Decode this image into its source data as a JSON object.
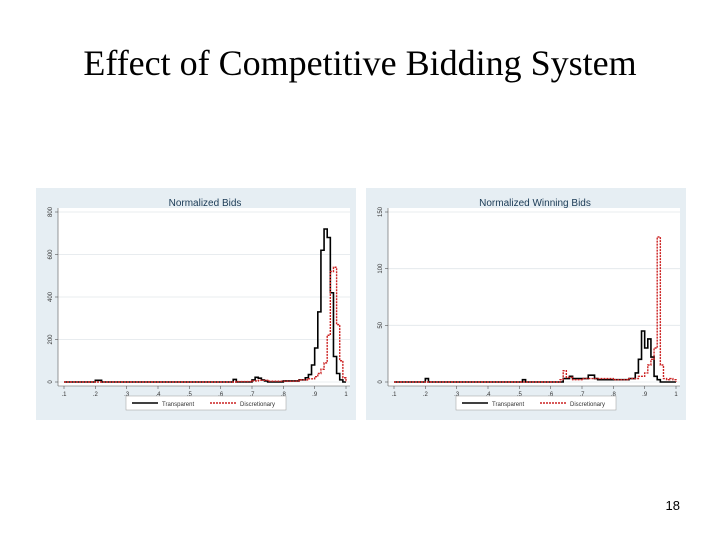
{
  "slide": {
    "title": "Effect of Competitive Bidding System",
    "page_number": "18"
  },
  "colors": {
    "panel_bg": "#e6eef3",
    "plot_bg": "#ffffff",
    "transparent_line": "#000000",
    "discretionary_line": "#cc2222"
  },
  "chart_data": [
    {
      "type": "line",
      "title": "Normalized Bids",
      "xlabel": "",
      "ylabel": "",
      "xlim": [
        0.1,
        1
      ],
      "ylim": [
        0,
        800
      ],
      "x_ticks": [
        ".1",
        ".2",
        ".3",
        ".4",
        ".5",
        ".6",
        ".7",
        ".8",
        ".9",
        "1"
      ],
      "y_ticks": [
        "0",
        "200",
        "400",
        "600",
        "800"
      ],
      "grid": true,
      "legend_position": "bottom",
      "series": [
        {
          "name": "Transparent",
          "color": "#000000",
          "style": "solid",
          "x": [
            0.1,
            0.19,
            0.2,
            0.21,
            0.22,
            0.3,
            0.4,
            0.5,
            0.6,
            0.63,
            0.64,
            0.65,
            0.7,
            0.71,
            0.72,
            0.73,
            0.74,
            0.75,
            0.8,
            0.85,
            0.87,
            0.88,
            0.89,
            0.9,
            0.91,
            0.92,
            0.93,
            0.94,
            0.95,
            0.96,
            0.97,
            0.98,
            0.99,
            1.0
          ],
          "y": [
            0,
            0,
            8,
            8,
            0,
            0,
            0,
            0,
            0,
            0,
            12,
            0,
            10,
            22,
            18,
            10,
            5,
            0,
            5,
            10,
            20,
            35,
            80,
            160,
            330,
            620,
            720,
            680,
            420,
            120,
            40,
            10,
            0,
            0
          ]
        },
        {
          "name": "Discretionary",
          "color": "#cc2222",
          "style": "dashed",
          "x": [
            0.1,
            0.3,
            0.5,
            0.6,
            0.65,
            0.7,
            0.72,
            0.75,
            0.8,
            0.85,
            0.88,
            0.9,
            0.91,
            0.92,
            0.93,
            0.94,
            0.95,
            0.96,
            0.97,
            0.98,
            0.99,
            1.0
          ],
          "y": [
            0,
            0,
            0,
            0,
            2,
            5,
            8,
            4,
            4,
            10,
            15,
            25,
            40,
            60,
            90,
            220,
            520,
            540,
            270,
            100,
            20,
            0
          ]
        }
      ]
    },
    {
      "type": "line",
      "title": "Normalized Winning Bids",
      "xlabel": "",
      "ylabel": "",
      "xlim": [
        0.1,
        1
      ],
      "ylim": [
        0,
        150
      ],
      "x_ticks": [
        ".1",
        ".2",
        ".3",
        ".4",
        ".5",
        ".6",
        ".7",
        ".8",
        ".9",
        "1"
      ],
      "y_ticks": [
        "0",
        "50",
        "100",
        "150"
      ],
      "grid": true,
      "legend_position": "bottom",
      "series": [
        {
          "name": "Transparent",
          "color": "#000000",
          "style": "solid",
          "x": [
            0.1,
            0.19,
            0.2,
            0.21,
            0.3,
            0.4,
            0.5,
            0.51,
            0.52,
            0.6,
            0.64,
            0.66,
            0.67,
            0.7,
            0.72,
            0.74,
            0.75,
            0.8,
            0.85,
            0.87,
            0.88,
            0.89,
            0.9,
            0.91,
            0.92,
            0.93,
            0.94,
            0.95,
            0.96,
            0.97,
            1.0
          ],
          "y": [
            0,
            0,
            3,
            0,
            0,
            0,
            0,
            2,
            0,
            0,
            3,
            5,
            3,
            3,
            6,
            3,
            2,
            2,
            3,
            8,
            20,
            45,
            30,
            38,
            22,
            5,
            2,
            0,
            0,
            0,
            0
          ]
        },
        {
          "name": "Discretionary",
          "color": "#cc2222",
          "style": "dashed",
          "x": [
            0.1,
            0.5,
            0.6,
            0.63,
            0.64,
            0.65,
            0.67,
            0.7,
            0.75,
            0.8,
            0.85,
            0.88,
            0.9,
            0.91,
            0.92,
            0.93,
            0.94,
            0.95,
            0.96,
            0.97,
            0.98,
            0.99,
            1.0
          ],
          "y": [
            0,
            0,
            0,
            2,
            10,
            4,
            2,
            3,
            3,
            2,
            3,
            5,
            8,
            15,
            20,
            30,
            128,
            15,
            3,
            2,
            3,
            2,
            0
          ]
        }
      ]
    }
  ]
}
